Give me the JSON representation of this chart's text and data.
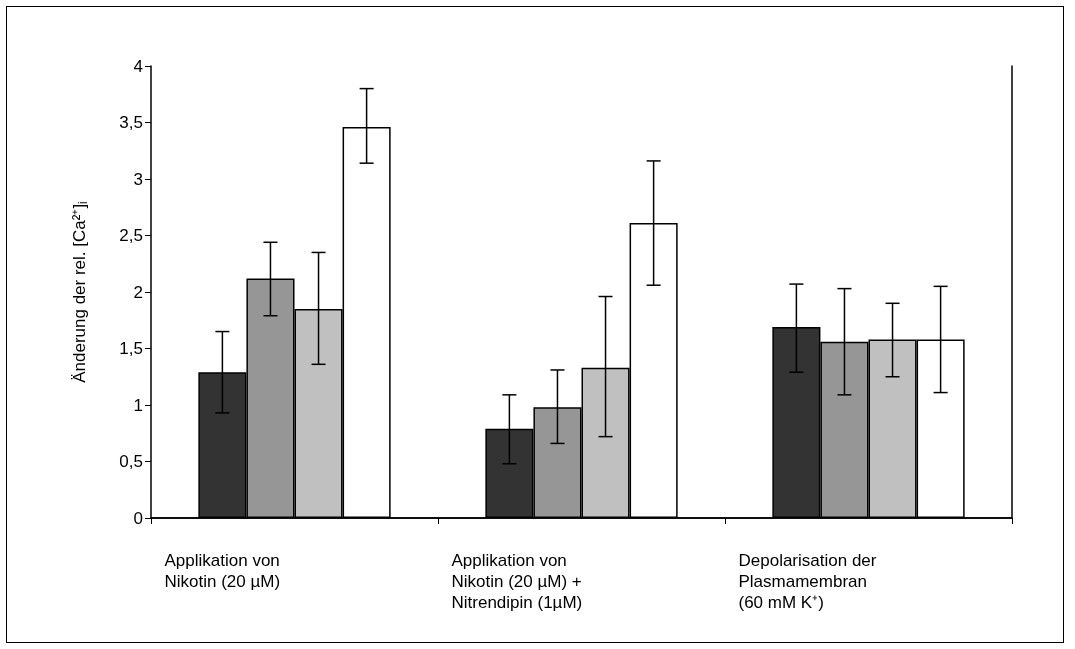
{
  "chart_data": {
    "type": "bar",
    "ylabel": "Änderung der rel. [Ca²⁺]$_{i}$",
    "categories": [
      "Applikation von Nikotin (20 µM)",
      "Applikation von Nikotin (20 µM) + Nitrendipin (1µM)",
      "Depolarisation der Plasmamembran (60 mM K⁺)"
    ],
    "series": [
      {
        "color": "#333333",
        "values": [
          1.29,
          0.79,
          1.69
        ],
        "errors": [
          [
            0.93,
            1.65
          ],
          [
            0.48,
            1.09
          ],
          [
            1.29,
            2.07
          ]
        ]
      },
      {
        "color": "#969696",
        "values": [
          2.12,
          0.98,
          1.56
        ],
        "errors": [
          [
            1.79,
            2.44
          ],
          [
            0.66,
            1.31
          ],
          [
            1.09,
            2.03
          ]
        ]
      },
      {
        "color": "#c0c0c0",
        "values": [
          1.85,
          1.33,
          1.58
        ],
        "errors": [
          [
            1.36,
            2.35
          ],
          [
            0.72,
            1.96
          ],
          [
            1.25,
            1.9
          ]
        ]
      },
      {
        "color": "#ffffff",
        "values": [
          3.46,
          2.61,
          1.58
        ],
        "errors": [
          [
            3.14,
            3.8
          ],
          [
            2.06,
            3.16
          ],
          [
            1.11,
            2.05
          ]
        ]
      }
    ],
    "ylim": [
      0,
      4
    ],
    "yticks": [
      {
        "value": 0,
        "label": "0"
      },
      {
        "value": 0.5,
        "label": "0,5"
      },
      {
        "value": 1,
        "label": "1"
      },
      {
        "value": 1.5,
        "label": "1,5"
      },
      {
        "value": 2,
        "label": "2"
      },
      {
        "value": 2.5,
        "label": "2,5"
      },
      {
        "value": 3,
        "label": "3"
      },
      {
        "value": 3.5,
        "label": "3,5"
      },
      {
        "value": 4,
        "label": "4"
      }
    ],
    "grid": false
  }
}
